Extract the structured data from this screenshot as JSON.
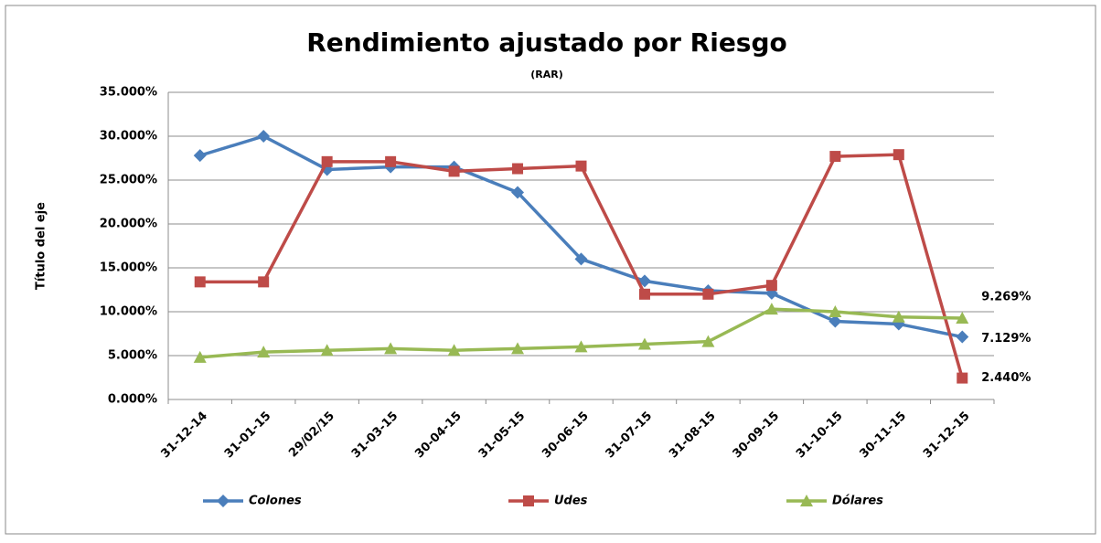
{
  "chart_data": {
    "type": "line",
    "title": "Rendimiento ajustado por  Riesgo",
    "subtitle": "(RAR)",
    "y_label": "Título del eje",
    "categories": [
      "31-12-14",
      "31-01-15",
      "29/02/15",
      "31-03-15",
      "30-04-15",
      "31-05-15",
      "30-06-15",
      "31-07-15",
      "31-08-15",
      "30-09-15",
      "31-10-15",
      "30-11-15",
      "31-12-15"
    ],
    "series": [
      {
        "name": "Colones",
        "color": "#4a7ebb",
        "marker": "diamond",
        "values": [
          27.8,
          30.0,
          26.2,
          26.5,
          26.5,
          23.6,
          16.0,
          13.5,
          12.4,
          12.1,
          8.9,
          8.6,
          7.129
        ],
        "value_labels": [
          null,
          null,
          null,
          null,
          null,
          null,
          null,
          null,
          null,
          null,
          null,
          null,
          "7.129%"
        ]
      },
      {
        "name": "Udes",
        "color": "#be4b48",
        "marker": "square",
        "values": [
          13.4,
          13.4,
          27.1,
          27.1,
          26.0,
          26.3,
          26.6,
          12.0,
          12.0,
          13.0,
          27.7,
          27.9,
          2.44
        ],
        "value_labels": [
          null,
          null,
          null,
          null,
          null,
          null,
          null,
          null,
          null,
          null,
          null,
          null,
          "2.440%"
        ]
      },
      {
        "name": "Dólares",
        "color": "#98b954",
        "marker": "triangle",
        "values": [
          4.8,
          5.4,
          5.6,
          5.8,
          5.6,
          5.8,
          6.0,
          6.3,
          6.6,
          10.3,
          10.0,
          9.4,
          9.269
        ],
        "value_labels": [
          null,
          null,
          null,
          null,
          null,
          null,
          null,
          null,
          null,
          null,
          null,
          null,
          "9.269%"
        ]
      }
    ],
    "ylim": [
      0,
      35
    ],
    "yticks": [
      {
        "value": 0,
        "label": "0.000%"
      },
      {
        "value": 5,
        "label": "5.000%"
      },
      {
        "value": 10,
        "label": "10.000%"
      },
      {
        "value": 15,
        "label": "15.000%"
      },
      {
        "value": 20,
        "label": "20.000%"
      },
      {
        "value": 25,
        "label": "25.000%"
      },
      {
        "value": 30,
        "label": "30.000%"
      },
      {
        "value": 35,
        "label": "35.000%"
      }
    ],
    "grid": true,
    "legend": "bottom"
  }
}
